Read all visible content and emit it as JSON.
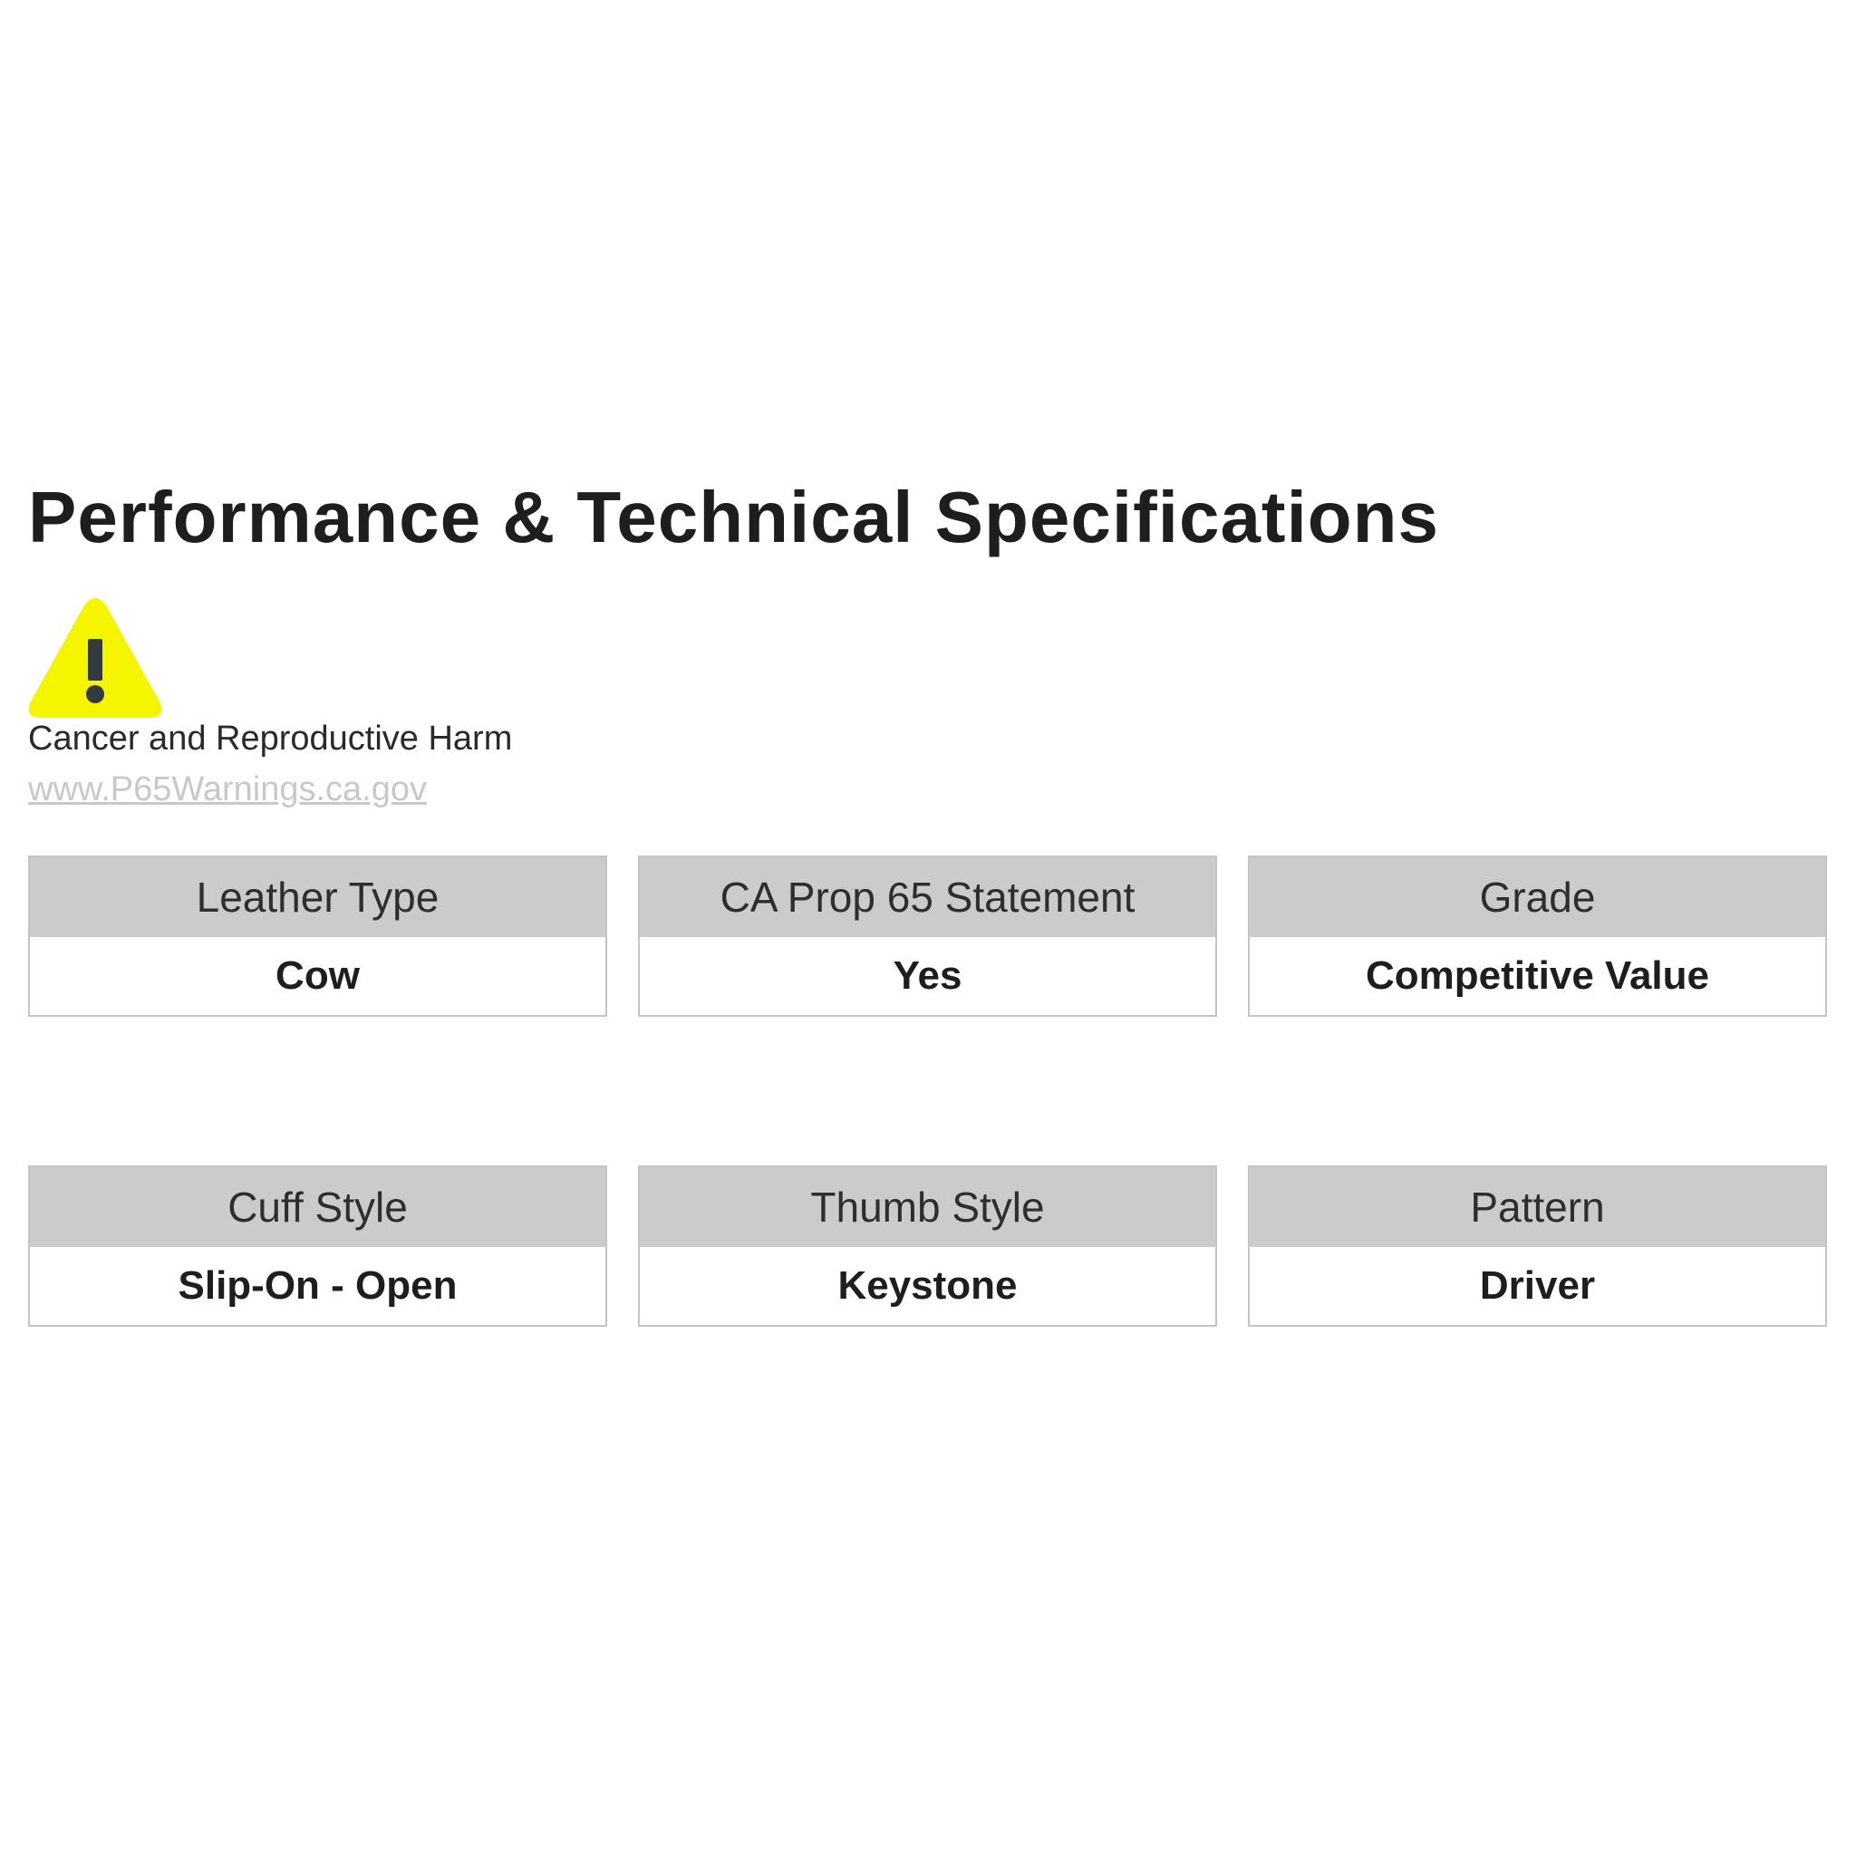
{
  "title": "Performance & Technical Specifications",
  "warning": {
    "icon": "warning-triangle-icon",
    "icon_color": "#f5f500",
    "text": "Cancer and Reproductive Harm",
    "link": "www.P65Warnings.ca.gov"
  },
  "specs": [
    {
      "label": "Leather Type",
      "value": "Cow"
    },
    {
      "label": "CA Prop 65 Statement",
      "value": "Yes"
    },
    {
      "label": "Grade",
      "value": "Competitive Value"
    },
    {
      "label": "Cuff Style",
      "value": "Slip-On - Open"
    },
    {
      "label": "Thumb Style",
      "value": "Keystone"
    },
    {
      "label": "Pattern",
      "value": "Driver"
    }
  ]
}
